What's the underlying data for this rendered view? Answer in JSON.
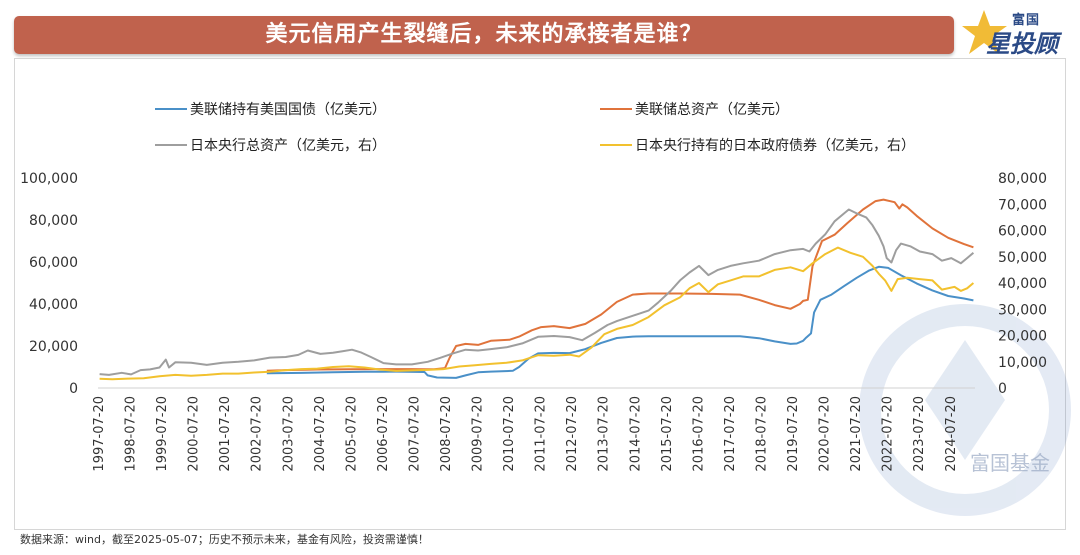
{
  "banner": {
    "title": "美元信用产生裂缝后，未来的承接者是谁？"
  },
  "logo": {
    "top": "富国",
    "bottom": "星投顾"
  },
  "footnote": "数据来源：wind，截至2025-05-07；历史不预示未来，基金有风险，投资需谨慎！",
  "watermark": "富国基金",
  "chart_data": {
    "type": "line",
    "title": "",
    "y_left": {
      "ticks": [
        "0",
        "20,000",
        "40,000",
        "60,000",
        "80,000",
        "100,000"
      ],
      "range": [
        0,
        100000
      ]
    },
    "y_right": {
      "ticks": [
        "0",
        "10,000",
        "20,000",
        "30,000",
        "40,000",
        "50,000",
        "60,000",
        "70,000",
        "80,000"
      ],
      "range": [
        0,
        80000
      ]
    },
    "x_ticks": [
      "1997-07-20",
      "1998-07-20",
      "1999-07-20",
      "2000-07-20",
      "2001-07-20",
      "2002-07-20",
      "2003-07-20",
      "2004-07-20",
      "2005-07-20",
      "2006-07-20",
      "2007-07-20",
      "2008-07-20",
      "2009-07-20",
      "2010-07-20",
      "2011-07-20",
      "2012-07-20",
      "2013-07-20",
      "2014-07-20",
      "2015-07-20",
      "2016-07-20",
      "2017-07-20",
      "2018-07-20",
      "2019-07-20",
      "2020-07-20",
      "2021-07-20",
      "2022-07-20",
      "2023-07-20",
      "2024-07-20"
    ],
    "x_range": [
      1997.55,
      2025.35
    ],
    "legend_position": "top",
    "series": [
      {
        "name": "美联储持有美国国债（亿美元）",
        "color": "#4a90c8",
        "axis": "left",
        "points": [
          [
            2002.9,
            7000
          ],
          [
            2003.0,
            7000
          ],
          [
            2004.0,
            7200
          ],
          [
            2005.0,
            7500
          ],
          [
            2006.0,
            7700
          ],
          [
            2007.0,
            7800
          ],
          [
            2007.9,
            7600
          ],
          [
            2008.0,
            6000
          ],
          [
            2008.3,
            5000
          ],
          [
            2008.9,
            4800
          ],
          [
            2009.2,
            6000
          ],
          [
            2009.6,
            7500
          ],
          [
            2010.0,
            7800
          ],
          [
            2010.7,
            8200
          ],
          [
            2010.9,
            10000
          ],
          [
            2011.2,
            14000
          ],
          [
            2011.5,
            16500
          ],
          [
            2012.0,
            16700
          ],
          [
            2012.5,
            16600
          ],
          [
            2013.0,
            18500
          ],
          [
            2013.5,
            21500
          ],
          [
            2014.0,
            23800
          ],
          [
            2014.5,
            24500
          ],
          [
            2015.0,
            24600
          ],
          [
            2016.0,
            24600
          ],
          [
            2017.0,
            24600
          ],
          [
            2017.9,
            24600
          ],
          [
            2018.5,
            23700
          ],
          [
            2019.0,
            22200
          ],
          [
            2019.5,
            21000
          ],
          [
            2019.7,
            21200
          ],
          [
            2019.9,
            22500
          ],
          [
            2020.0,
            24000
          ],
          [
            2020.15,
            26000
          ],
          [
            2020.25,
            36000
          ],
          [
            2020.45,
            42000
          ],
          [
            2020.8,
            44500
          ],
          [
            2021.2,
            48500
          ],
          [
            2021.6,
            52500
          ],
          [
            2022.0,
            56000
          ],
          [
            2022.3,
            57700
          ],
          [
            2022.6,
            57200
          ],
          [
            2023.0,
            53700
          ],
          [
            2023.5,
            49800
          ],
          [
            2024.0,
            46500
          ],
          [
            2024.5,
            43800
          ],
          [
            2025.0,
            42600
          ],
          [
            2025.3,
            41700
          ]
        ]
      },
      {
        "name": "美联储总资产（亿美元）",
        "color": "#e0733b",
        "axis": "left",
        "points": [
          [
            2002.9,
            8200
          ],
          [
            2003.5,
            8500
          ],
          [
            2004.5,
            8800
          ],
          [
            2005.5,
            8900
          ],
          [
            2006.5,
            9000
          ],
          [
            2007.5,
            9000
          ],
          [
            2007.9,
            8900
          ],
          [
            2008.2,
            8900
          ],
          [
            2008.55,
            9500
          ],
          [
            2008.7,
            14500
          ],
          [
            2008.9,
            20000
          ],
          [
            2009.2,
            21000
          ],
          [
            2009.6,
            20500
          ],
          [
            2010.0,
            22500
          ],
          [
            2010.6,
            23000
          ],
          [
            2010.9,
            24500
          ],
          [
            2011.3,
            27500
          ],
          [
            2011.6,
            29000
          ],
          [
            2012.0,
            29500
          ],
          [
            2012.5,
            28500
          ],
          [
            2013.0,
            30500
          ],
          [
            2013.5,
            35000
          ],
          [
            2014.0,
            41000
          ],
          [
            2014.5,
            44500
          ],
          [
            2015.0,
            45000
          ],
          [
            2016.0,
            45000
          ],
          [
            2017.0,
            44800
          ],
          [
            2017.9,
            44500
          ],
          [
            2018.5,
            42000
          ],
          [
            2019.0,
            39500
          ],
          [
            2019.5,
            37700
          ],
          [
            2019.8,
            40000
          ],
          [
            2019.9,
            41500
          ],
          [
            2020.05,
            42000
          ],
          [
            2020.2,
            58000
          ],
          [
            2020.5,
            70000
          ],
          [
            2020.9,
            73000
          ],
          [
            2021.3,
            78500
          ],
          [
            2021.8,
            85000
          ],
          [
            2022.2,
            89000
          ],
          [
            2022.45,
            89700
          ],
          [
            2022.8,
            88500
          ],
          [
            2022.95,
            85500
          ],
          [
            2023.05,
            87500
          ],
          [
            2023.2,
            86000
          ],
          [
            2023.5,
            82000
          ],
          [
            2024.0,
            76000
          ],
          [
            2024.5,
            71500
          ],
          [
            2025.0,
            68500
          ],
          [
            2025.3,
            67000
          ]
        ]
      },
      {
        "name": "日本央行总资产（亿美元，右）",
        "color": "#9e9e9e",
        "axis": "right",
        "points": [
          [
            1997.6,
            5300
          ],
          [
            1997.9,
            5000
          ],
          [
            1998.3,
            5800
          ],
          [
            1998.6,
            5200
          ],
          [
            1998.9,
            6800
          ],
          [
            1999.2,
            7100
          ],
          [
            1999.5,
            7800
          ],
          [
            1999.7,
            10800
          ],
          [
            1999.8,
            7800
          ],
          [
            2000.0,
            9800
          ],
          [
            2000.5,
            9600
          ],
          [
            2001.0,
            8800
          ],
          [
            2001.5,
            9600
          ],
          [
            2002.0,
            10000
          ],
          [
            2002.5,
            10500
          ],
          [
            2003.0,
            11600
          ],
          [
            2003.5,
            11800
          ],
          [
            2003.9,
            12600
          ],
          [
            2004.2,
            14300
          ],
          [
            2004.6,
            13000
          ],
          [
            2005.0,
            13400
          ],
          [
            2005.3,
            14000
          ],
          [
            2005.6,
            14600
          ],
          [
            2005.9,
            13500
          ],
          [
            2006.2,
            11800
          ],
          [
            2006.6,
            9500
          ],
          [
            2007.0,
            9000
          ],
          [
            2007.5,
            9000
          ],
          [
            2008.0,
            10000
          ],
          [
            2008.4,
            11500
          ],
          [
            2008.8,
            13200
          ],
          [
            2009.2,
            14600
          ],
          [
            2009.6,
            14300
          ],
          [
            2010.0,
            14800
          ],
          [
            2010.5,
            15500
          ],
          [
            2011.0,
            17000
          ],
          [
            2011.5,
            19500
          ],
          [
            2012.0,
            19800
          ],
          [
            2012.5,
            19400
          ],
          [
            2012.9,
            18200
          ],
          [
            2013.3,
            21000
          ],
          [
            2013.7,
            24000
          ],
          [
            2014.0,
            25500
          ],
          [
            2014.5,
            27500
          ],
          [
            2015.0,
            29500
          ],
          [
            2015.3,
            32500
          ],
          [
            2015.7,
            37000
          ],
          [
            2016.0,
            41000
          ],
          [
            2016.3,
            44000
          ],
          [
            2016.6,
            46500
          ],
          [
            2016.9,
            43000
          ],
          [
            2017.2,
            45000
          ],
          [
            2017.6,
            46500
          ],
          [
            2018.0,
            47500
          ],
          [
            2018.5,
            48500
          ],
          [
            2019.0,
            51000
          ],
          [
            2019.5,
            52500
          ],
          [
            2019.9,
            53000
          ],
          [
            2020.1,
            52000
          ],
          [
            2020.3,
            55000
          ],
          [
            2020.6,
            58500
          ],
          [
            2020.9,
            63500
          ],
          [
            2021.2,
            66500
          ],
          [
            2021.35,
            68000
          ],
          [
            2021.6,
            66500
          ],
          [
            2021.9,
            65000
          ],
          [
            2022.1,
            62000
          ],
          [
            2022.3,
            58000
          ],
          [
            2022.45,
            54000
          ],
          [
            2022.55,
            49500
          ],
          [
            2022.7,
            47800
          ],
          [
            2022.85,
            52500
          ],
          [
            2023.0,
            55000
          ],
          [
            2023.3,
            54000
          ],
          [
            2023.6,
            52000
          ],
          [
            2024.0,
            51000
          ],
          [
            2024.3,
            48500
          ],
          [
            2024.6,
            49500
          ],
          [
            2024.9,
            47500
          ],
          [
            2025.1,
            49500
          ],
          [
            2025.3,
            51500
          ]
        ]
      },
      {
        "name": "日本央行持有的日本政府债券（亿美元，右）",
        "color": "#f2c12e",
        "axis": "right",
        "points": [
          [
            1997.6,
            3500
          ],
          [
            1998.0,
            3300
          ],
          [
            1998.5,
            3600
          ],
          [
            1999.0,
            3700
          ],
          [
            1999.5,
            4500
          ],
          [
            2000.0,
            5000
          ],
          [
            2000.5,
            4700
          ],
          [
            2001.0,
            5000
          ],
          [
            2001.5,
            5500
          ],
          [
            2002.0,
            5500
          ],
          [
            2002.5,
            5900
          ],
          [
            2003.0,
            6200
          ],
          [
            2003.5,
            6800
          ],
          [
            2004.0,
            7200
          ],
          [
            2004.5,
            7400
          ],
          [
            2005.0,
            8000
          ],
          [
            2005.5,
            8300
          ],
          [
            2006.0,
            7800
          ],
          [
            2006.5,
            7000
          ],
          [
            2007.0,
            6500
          ],
          [
            2007.5,
            6700
          ],
          [
            2008.0,
            6900
          ],
          [
            2008.5,
            7200
          ],
          [
            2009.0,
            8200
          ],
          [
            2009.5,
            8700
          ],
          [
            2010.0,
            9200
          ],
          [
            2010.5,
            9600
          ],
          [
            2011.0,
            10500
          ],
          [
            2011.5,
            12500
          ],
          [
            2012.0,
            12300
          ],
          [
            2012.5,
            12700
          ],
          [
            2012.8,
            12000
          ],
          [
            2013.2,
            15500
          ],
          [
            2013.6,
            20500
          ],
          [
            2014.0,
            22500
          ],
          [
            2014.5,
            24000
          ],
          [
            2015.0,
            27000
          ],
          [
            2015.5,
            31500
          ],
          [
            2016.0,
            34500
          ],
          [
            2016.3,
            38000
          ],
          [
            2016.6,
            40000
          ],
          [
            2016.9,
            36500
          ],
          [
            2017.2,
            39500
          ],
          [
            2017.6,
            41000
          ],
          [
            2018.0,
            42500
          ],
          [
            2018.5,
            42500
          ],
          [
            2019.0,
            45000
          ],
          [
            2019.5,
            46000
          ],
          [
            2019.9,
            44500
          ],
          [
            2020.2,
            47500
          ],
          [
            2020.6,
            51000
          ],
          [
            2021.0,
            53500
          ],
          [
            2021.4,
            51500
          ],
          [
            2021.8,
            50000
          ],
          [
            2022.1,
            46500
          ],
          [
            2022.3,
            43500
          ],
          [
            2022.5,
            41000
          ],
          [
            2022.7,
            37000
          ],
          [
            2022.9,
            41500
          ],
          [
            2023.2,
            42000
          ],
          [
            2023.6,
            41500
          ],
          [
            2024.0,
            41000
          ],
          [
            2024.3,
            37500
          ],
          [
            2024.7,
            38500
          ],
          [
            2024.9,
            37000
          ],
          [
            2025.1,
            38000
          ],
          [
            2025.3,
            40000
          ]
        ]
      }
    ]
  }
}
